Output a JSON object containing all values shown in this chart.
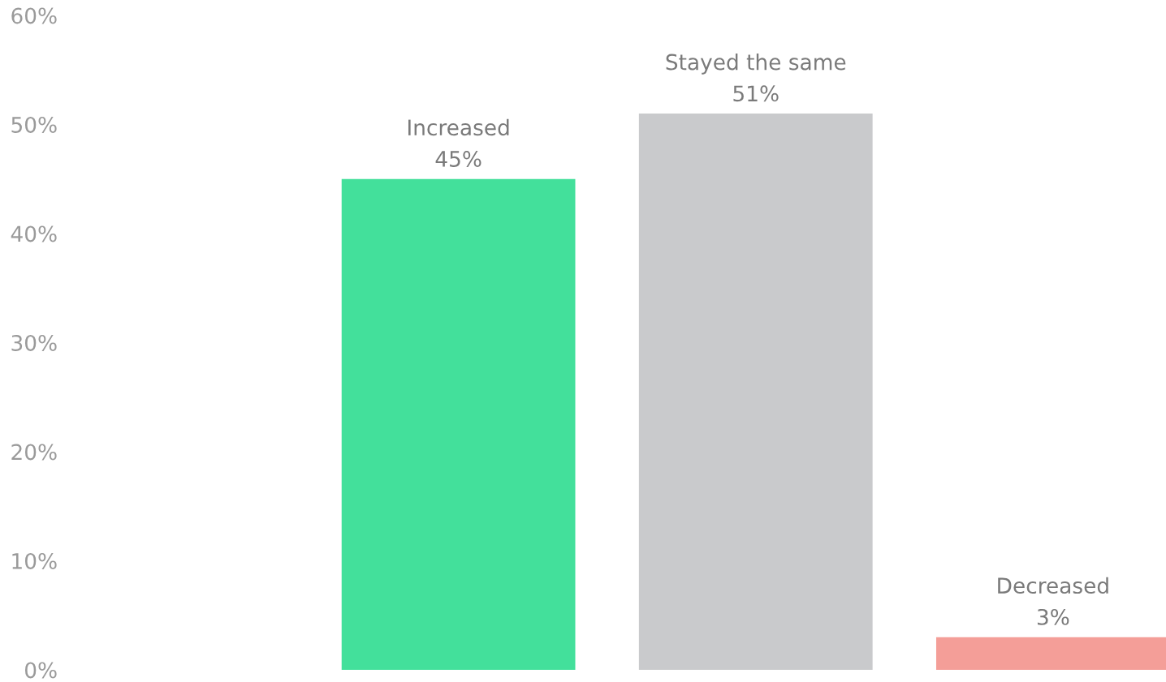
{
  "chart_data": {
    "type": "bar",
    "categories": [
      "Increased",
      "Stayed the same",
      "Decreased"
    ],
    "values": [
      45,
      51,
      3
    ],
    "value_labels": [
      "45%",
      "51%",
      "3%"
    ],
    "colors": [
      "#43e09b",
      "#c9cacc",
      "#f49e98"
    ],
    "ylim": [
      0,
      60
    ],
    "yticks": [
      {
        "value": 0,
        "label": "0%"
      },
      {
        "value": 10,
        "label": "10%"
      },
      {
        "value": 20,
        "label": "20%"
      },
      {
        "value": 30,
        "label": "30%"
      },
      {
        "value": 40,
        "label": "40%"
      },
      {
        "value": 50,
        "label": "50%"
      },
      {
        "value": 60,
        "label": "60%"
      }
    ],
    "grid": false,
    "tick_labels": "y"
  }
}
